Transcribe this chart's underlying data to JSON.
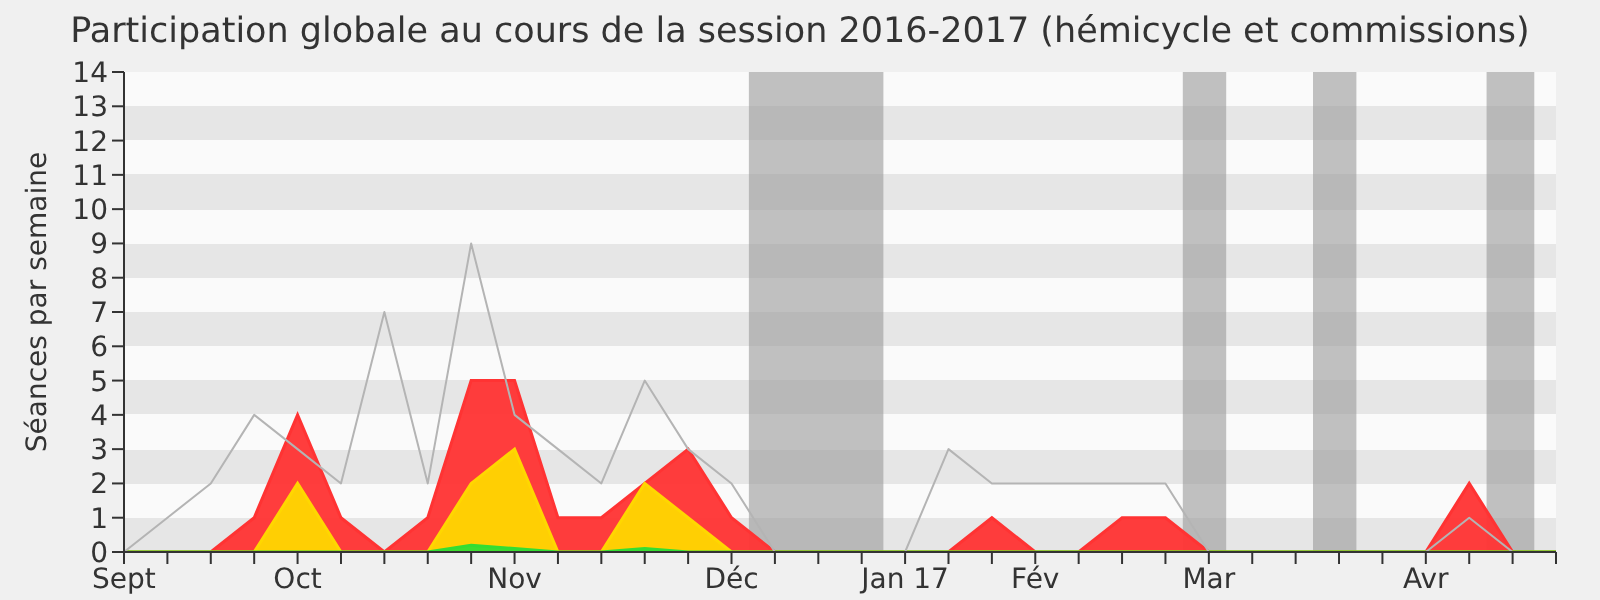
{
  "chart_data": {
    "type": "area",
    "title": "Participation globale au cours de la session 2016-2017 (hémicycle et commissions)",
    "ylabel": "Séances par semaine",
    "categories": [
      "Sept",
      null,
      null,
      null,
      "Oct",
      null,
      null,
      null,
      null,
      "Nov",
      null,
      null,
      null,
      null,
      "Déc",
      null,
      null,
      null,
      "Jan 17",
      null,
      null,
      "Fév",
      null,
      null,
      null,
      "Mar",
      null,
      null,
      null,
      null,
      "Avr",
      null,
      null,
      null
    ],
    "ylim": [
      0,
      14
    ],
    "yticks": [
      0,
      1,
      2,
      3,
      4,
      5,
      6,
      7,
      8,
      9,
      10,
      11,
      12,
      13,
      14
    ],
    "series": [
      {
        "color": "#ff3333",
        "values": [
          0,
          0,
          0,
          1,
          4,
          1,
          0,
          1,
          5,
          5,
          1,
          1,
          2,
          3,
          1,
          0,
          0,
          0,
          0,
          0,
          1,
          0,
          0,
          1,
          1,
          0,
          0,
          0,
          0,
          0,
          0,
          2,
          0,
          0
        ]
      },
      {
        "color": "#ffd700",
        "values": [
          0,
          0,
          0,
          0,
          2,
          0,
          0,
          0,
          2,
          3,
          0,
          0,
          2,
          1,
          0,
          0,
          0,
          0,
          0,
          0,
          0,
          0,
          0,
          0,
          0,
          0,
          0,
          0,
          0,
          0,
          0,
          0,
          0,
          0
        ]
      },
      {
        "color": "#33dd33",
        "values": [
          0,
          0,
          0,
          0,
          0,
          0,
          0,
          0,
          0.2,
          0.1,
          0,
          0,
          0.1,
          0,
          0,
          0,
          0,
          0,
          0,
          0,
          0,
          0,
          0,
          0,
          0,
          0,
          0,
          0,
          0,
          0,
          0,
          0,
          0,
          0
        ]
      },
      {
        "type": "line",
        "color": "#b4b4b4",
        "values": [
          0,
          1,
          2,
          4,
          3,
          2,
          7,
          2,
          9,
          4,
          3,
          2,
          5,
          3,
          2,
          0,
          0,
          0,
          0,
          3,
          2,
          2,
          2,
          2,
          2,
          0,
          0,
          0,
          0,
          0,
          0,
          1,
          0,
          0
        ]
      }
    ]
  }
}
